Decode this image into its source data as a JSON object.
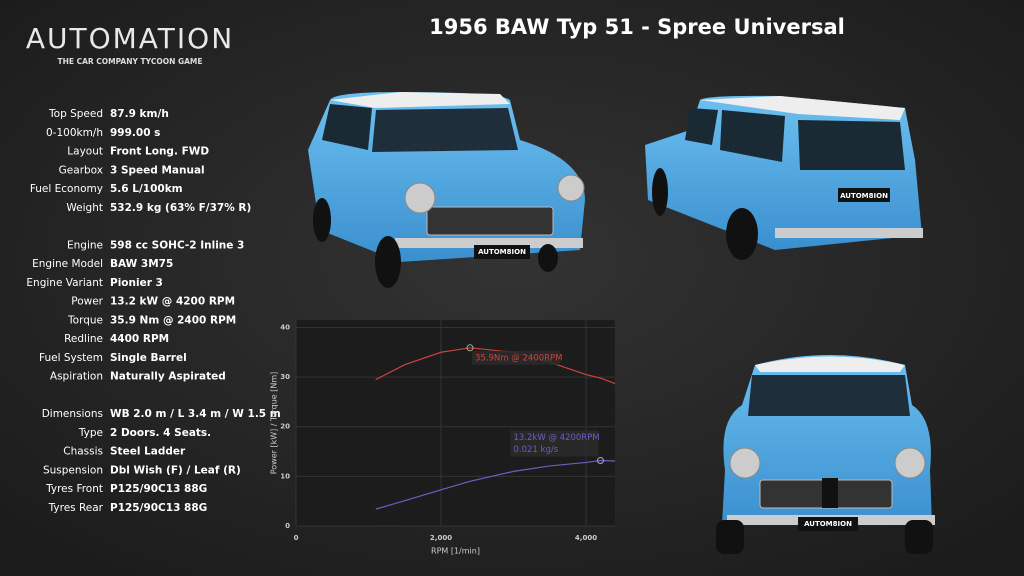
{
  "logo": {
    "title": "AUTOMATION",
    "subtitle": "THE CAR COMPANY TYCOON GAME"
  },
  "title": "1956 BAW Typ 51 - Spree Universal",
  "specs": [
    [
      {
        "label": "Top Speed",
        "value": "87.9 km/h"
      },
      {
        "label": "0-100km/h",
        "value": "999.00 s"
      },
      {
        "label": "Layout",
        "value": "Front Long. FWD"
      },
      {
        "label": "Gearbox",
        "value": "3 Speed Manual"
      },
      {
        "label": "Fuel Economy",
        "value": "5.6 L/100km"
      },
      {
        "label": "Weight",
        "value": "532.9 kg (63% F/37% R)"
      }
    ],
    [
      {
        "label": "Engine",
        "value": "598 cc SOHC-2 Inline 3"
      },
      {
        "label": "Engine Model",
        "value": "BAW 3M75"
      },
      {
        "label": "Engine Variant",
        "value": "Pionier 3"
      },
      {
        "label": "Power",
        "value": " 13.2 kW @ 4200 RPM"
      },
      {
        "label": "Torque",
        "value": " 35.9 Nm @ 2400 RPM"
      },
      {
        "label": "Redline",
        "value": "4400 RPM"
      },
      {
        "label": "Fuel System",
        "value": "Single Barrel"
      },
      {
        "label": "Aspiration",
        "value": "Naturally Aspirated"
      }
    ],
    [
      {
        "label": "Dimensions",
        "value": "WB 2.0 m / L 3.4 m / W 1.5 m"
      },
      {
        "label": "Type",
        "value": "2 Doors. 4 Seats."
      },
      {
        "label": "Chassis",
        "value": "Steel Ladder"
      },
      {
        "label": "Suspension",
        "value": "Dbl Wish (F) / Leaf (R)"
      },
      {
        "label": "Tyres Front",
        "value": "P125/90C13 88G"
      },
      {
        "label": "Tyres Rear",
        "value": "P125/90C13  88G"
      }
    ]
  ],
  "plates": [
    "AUTOM8ION",
    "AUTOM8ION",
    "AUTOM8ION"
  ],
  "chart_data": {
    "type": "line",
    "x_label": "RPM [1/min]",
    "y_label": "Power [kW] / Torque [Nm]",
    "x": [
      1100,
      1500,
      2000,
      2400,
      3000,
      3500,
      4000,
      4200,
      4400
    ],
    "series": [
      {
        "name": "Torque",
        "color": "#c9443f",
        "values": [
          29.5,
          32.5,
          35.0,
          35.9,
          35.0,
          33.0,
          30.5,
          29.8,
          28.7
        ]
      },
      {
        "name": "Power",
        "color": "#6a5fc4",
        "values": [
          3.4,
          5.1,
          7.3,
          9.0,
          11.0,
          12.1,
          12.8,
          13.2,
          13.1
        ]
      }
    ],
    "annotations": [
      {
        "x": 2400,
        "y": 35.9,
        "color": "#c9443f",
        "lines": [
          "35.9Nm @ 2400RPM"
        ]
      },
      {
        "x": 4200,
        "y": 13.2,
        "color": "#6a5fc4",
        "lines": [
          "13.2kW @ 4200RPM",
          "0.021 kg/s"
        ]
      }
    ],
    "xlim": [
      0,
      4400
    ],
    "ylim": [
      0,
      41.5
    ],
    "xticks": [
      0,
      {
        "value": 2000,
        "label": "2,000"
      },
      {
        "value": 4000,
        "label": "4,000"
      }
    ],
    "yticks": [
      0,
      10,
      20,
      30,
      40
    ],
    "grid": true
  }
}
